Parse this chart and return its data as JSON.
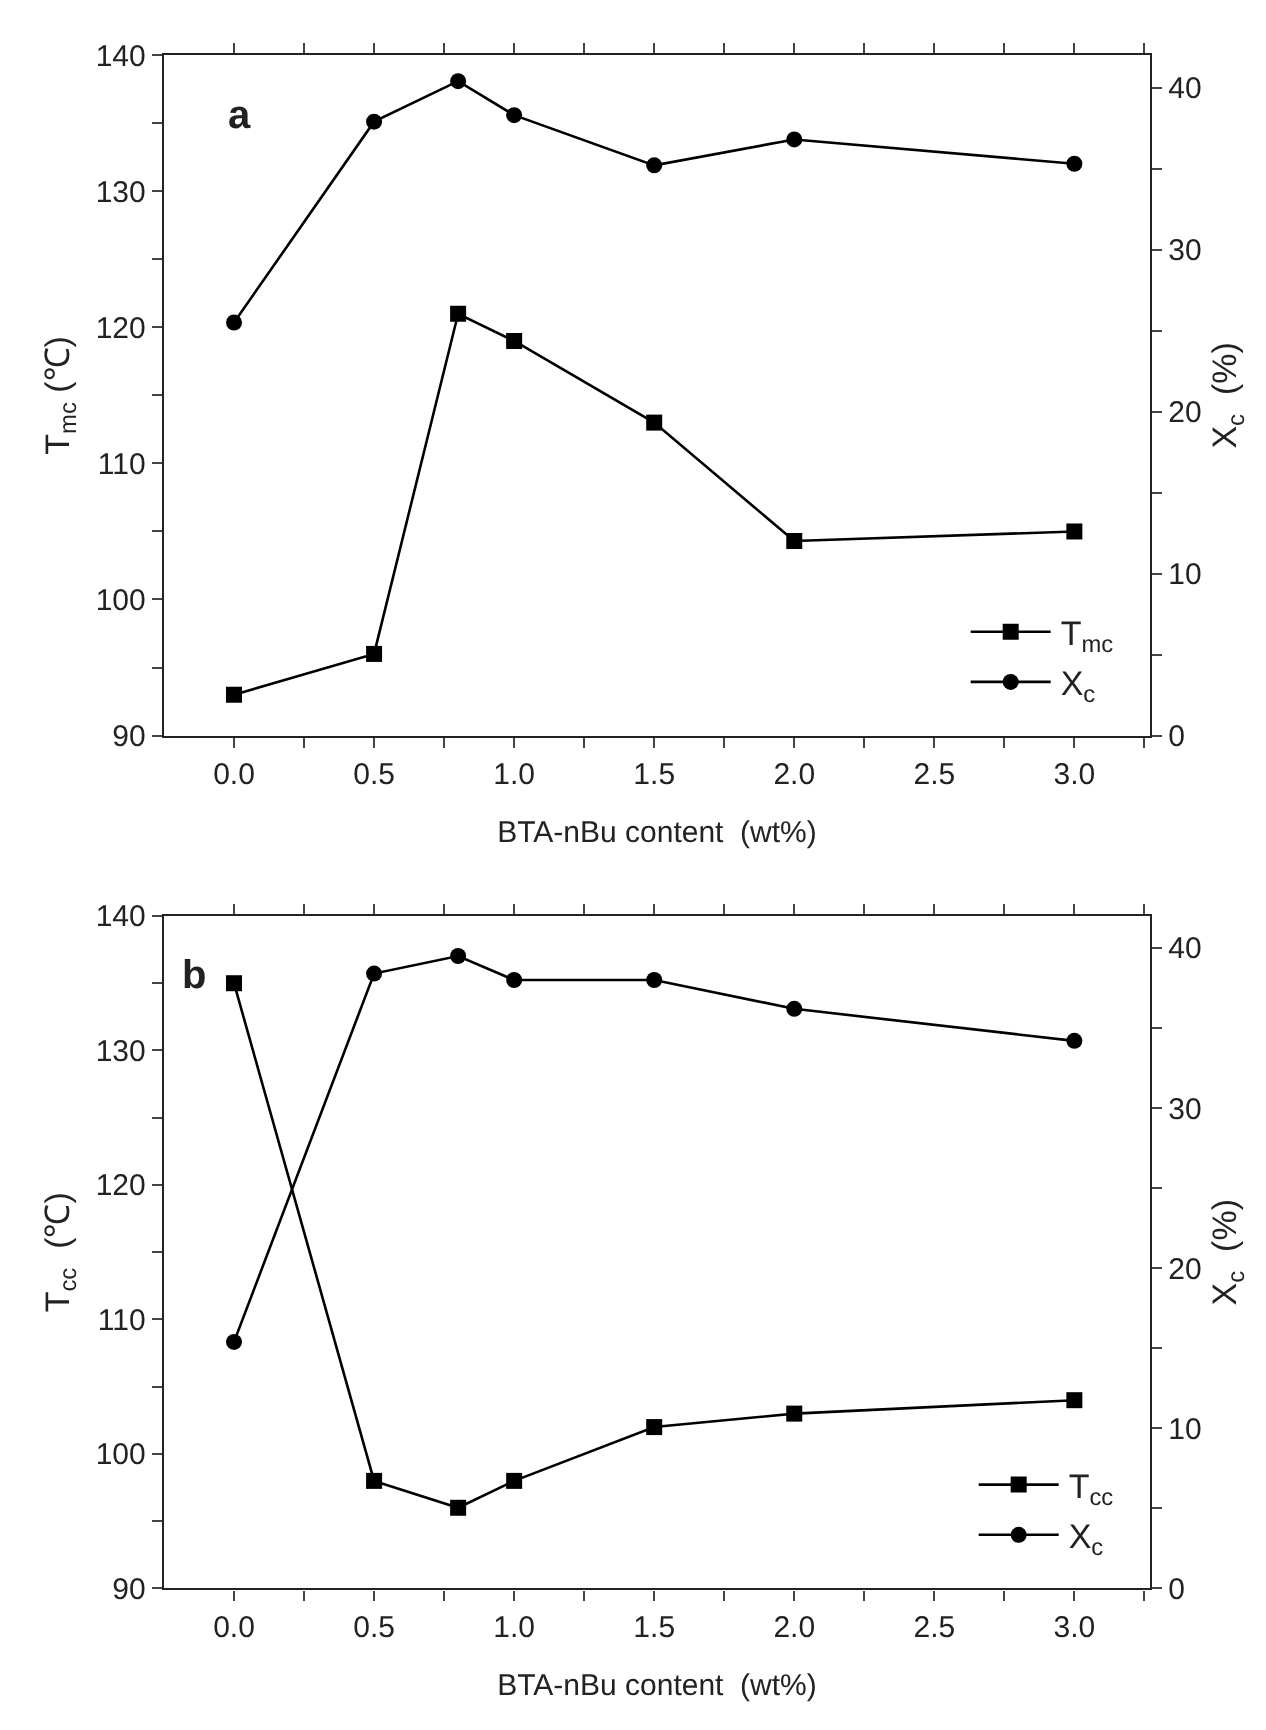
{
  "chart_data": [
    {
      "type": "line",
      "annotations": [
        "a"
      ],
      "xlabel": "BTA-nBu content  (wt%)",
      "ylabel": "T$_{mc}$ (℃)",
      "y2label": "X$_{c}$  (%)",
      "x": [
        0,
        0.5,
        0.8,
        1.0,
        1.5,
        2.0,
        3.0
      ],
      "series": [
        {
          "name": "T$_{mc}$",
          "color": "#000000",
          "marker": "square",
          "values": [
            93,
            96,
            121,
            119,
            113,
            104.3,
            105
          ]
        },
        {
          "name": "X$_{c}$",
          "color": "#000000",
          "marker": "circle",
          "axis": "y2",
          "values": [
            25.5,
            37.9,
            40.4,
            38.3,
            35.2,
            36.8,
            35.3
          ]
        }
      ],
      "xlim": [
        -0.25,
        3.27
      ],
      "xticks": [
        {
          "value": 0,
          "label": "0.0"
        },
        {
          "value": 0.25,
          "label": null
        },
        {
          "value": 0.5,
          "label": "0.5"
        },
        {
          "value": 0.75,
          "label": null
        },
        {
          "value": 1.0,
          "label": "1.0"
        },
        {
          "value": 1.25,
          "label": null
        },
        {
          "value": 1.5,
          "label": "1.5"
        },
        {
          "value": 1.75,
          "label": null
        },
        {
          "value": 2.0,
          "label": "2.0"
        },
        {
          "value": 2.25,
          "label": null
        },
        {
          "value": 2.5,
          "label": "2.5"
        },
        {
          "value": 2.75,
          "label": null
        },
        {
          "value": 3.0,
          "label": "3.0"
        },
        {
          "value": 3.25,
          "label": null
        }
      ],
      "ylim": [
        90,
        140
      ],
      "yticks": [
        90,
        {
          "value": 95,
          "label": null
        },
        100,
        {
          "value": 105,
          "label": null
        },
        110,
        {
          "value": 115,
          "label": null
        },
        120,
        {
          "value": 125,
          "label": null
        },
        130,
        {
          "value": 135,
          "label": null
        },
        140
      ],
      "y2lim": [
        0,
        42
      ],
      "y2ticks": [
        0,
        {
          "value": 5,
          "label": null
        },
        10,
        {
          "value": 15,
          "label": null
        },
        20,
        {
          "value": 25,
          "label": null
        },
        30,
        {
          "value": 35,
          "label": null
        },
        40
      ],
      "legend": "bottom right",
      "line_style": "solid"
    },
    {
      "type": "line",
      "annotations": [
        "b"
      ],
      "xlabel": "BTA-nBu content  (wt%)",
      "ylabel": "T$_{cc}$  (℃)",
      "y2label": "X$_{c}$  (%)",
      "x": [
        0,
        0.5,
        0.8,
        1.0,
        1.5,
        2.0,
        3.0
      ],
      "series": [
        {
          "name": "T$_{cc}$",
          "color": "#000000",
          "marker": "square",
          "values": [
            135,
            98,
            96,
            98,
            102,
            103,
            104
          ]
        },
        {
          "name": "X$_{c}$",
          "color": "#000000",
          "marker": "circle",
          "axis": "y2",
          "values": [
            15.4,
            38.4,
            39.5,
            38.0,
            38.0,
            36.2,
            34.2
          ]
        }
      ],
      "xlim": [
        -0.25,
        3.27
      ],
      "xticks": [
        {
          "value": 0,
          "label": "0.0"
        },
        {
          "value": 0.25,
          "label": null
        },
        {
          "value": 0.5,
          "label": "0.5"
        },
        {
          "value": 0.75,
          "label": null
        },
        {
          "value": 1.0,
          "label": "1.0"
        },
        {
          "value": 1.25,
          "label": null
        },
        {
          "value": 1.5,
          "label": "1.5"
        },
        {
          "value": 1.75,
          "label": null
        },
        {
          "value": 2.0,
          "label": "2.0"
        },
        {
          "value": 2.25,
          "label": null
        },
        {
          "value": 2.5,
          "label": "2.5"
        },
        {
          "value": 2.75,
          "label": null
        },
        {
          "value": 3.0,
          "label": "3.0"
        },
        {
          "value": 3.25,
          "label": null
        }
      ],
      "ylim": [
        90,
        140
      ],
      "yticks": [
        90,
        {
          "value": 95,
          "label": null
        },
        100,
        {
          "value": 105,
          "label": null
        },
        110,
        {
          "value": 115,
          "label": null
        },
        120,
        {
          "value": 125,
          "label": null
        },
        130,
        {
          "value": 135,
          "label": null
        },
        140
      ],
      "y2lim": [
        0,
        42
      ],
      "y2ticks": [
        0,
        {
          "value": 5,
          "label": null
        },
        10,
        {
          "value": 15,
          "label": null
        },
        20,
        {
          "value": 25,
          "label": null
        },
        30,
        {
          "value": 35,
          "label": null
        },
        40
      ],
      "legend": "bottom right",
      "line_style": "solid"
    }
  ]
}
